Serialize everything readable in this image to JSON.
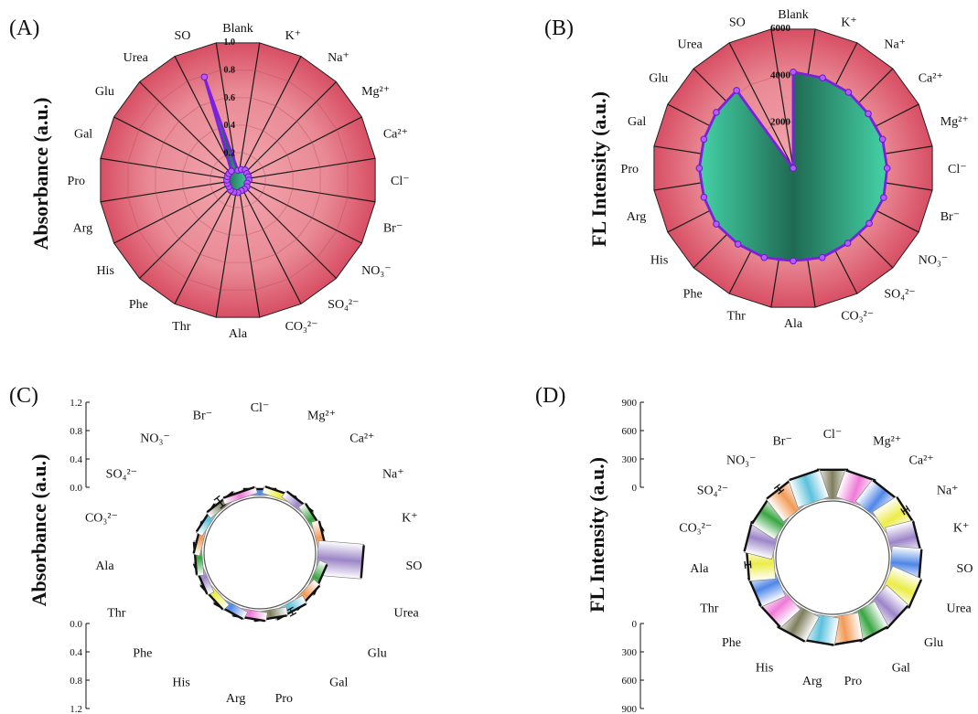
{
  "panels": [
    {
      "id": "A",
      "tag": "(A)",
      "type": "radar",
      "ylabel": "Absorbance (a.u.)",
      "rmax": 1.0,
      "ticks": [
        "0.2",
        "0.4",
        "0.6",
        "0.8",
        "1.0"
      ],
      "categories": [
        "Blank",
        "K⁺",
        "Na⁺",
        "Mg²⁺",
        "Ca²⁺",
        "Cl⁻",
        "Br⁻",
        "NO₃⁻",
        "SO₄²⁻",
        "CO₃²⁻",
        "Ala",
        "Thr",
        "Phe",
        "His",
        "Arg",
        "Pro",
        "Gal",
        "Glu",
        "Urea",
        "SO"
      ],
      "values": [
        0.07,
        0.08,
        0.09,
        0.08,
        0.08,
        0.08,
        0.07,
        0.08,
        0.08,
        0.08,
        0.09,
        0.09,
        0.09,
        0.08,
        0.08,
        0.08,
        0.08,
        0.08,
        0.08,
        0.78
      ]
    },
    {
      "id": "B",
      "tag": "(B)",
      "type": "radar",
      "ylabel": "FL Intensity (a.u.)",
      "rmax": 6000,
      "ticks": [
        "2000",
        "4000",
        "6000"
      ],
      "categories": [
        "Blank",
        "K⁺",
        "Na⁺",
        "Ca²⁺",
        "Mg²⁺",
        "Cl⁻",
        "Br⁻",
        "NO₃⁻",
        "SO₄²⁻",
        "CO₃²⁻",
        "Ala",
        "Thr",
        "Phe",
        "His",
        "Arg",
        "Pro",
        "Gal",
        "Glu",
        "Urea",
        "SO"
      ],
      "values": [
        4100,
        4050,
        4000,
        3950,
        4000,
        4000,
        4050,
        4000,
        3950,
        4000,
        3950,
        4000,
        4000,
        4050,
        4000,
        4000,
        4000,
        4050,
        4100,
        0
      ]
    },
    {
      "id": "C",
      "tag": "(C)",
      "type": "circular-bar",
      "ylabel": "Absorbance (a.u.)",
      "scale_top": [
        "1.2",
        "0.8",
        "0.4",
        "0.0"
      ],
      "scale_bottom": [
        "0.0",
        "0.4",
        "0.8",
        "1.2"
      ],
      "categories": [
        "Cl⁻",
        "Mg²⁺",
        "Ca²⁺",
        "Na⁺",
        "K⁺",
        "SO",
        "Urea",
        "Glu",
        "Gal",
        "Pro",
        "Arg",
        "His",
        "Phe",
        "Thr",
        "Ala",
        "CO₃²⁻",
        "SO₄²⁻",
        "NO₃⁻",
        "Br⁻"
      ],
      "values": [
        0.1,
        0.11,
        0.12,
        0.12,
        0.12,
        0.7,
        0.13,
        0.13,
        0.14,
        0.13,
        0.13,
        0.13,
        0.12,
        0.11,
        0.11,
        0.1,
        0.11,
        0.11,
        0.1
      ],
      "errors": [
        0.008,
        0.006,
        0.006,
        0.03,
        0.025,
        0.006,
        0.006,
        0.006,
        0.05,
        0.006,
        0.02,
        0.025,
        0.006,
        0.006,
        0.006,
        0.006,
        0.02,
        0.08,
        0.02
      ],
      "colors": [
        "#4f86e6",
        "#ecec48",
        "#9c85c8",
        "#39a642",
        "#f29a56",
        "#9c85c8",
        "#39a642",
        "#f29a56",
        "#5cc1dc",
        "#7e7e5e",
        "#ef7ad8",
        "#4f86e6",
        "#ecec48",
        "#9c85c8",
        "#39a642",
        "#f29a56",
        "#5cc1dc",
        "#7e7e5e",
        "#ef7ad8"
      ]
    },
    {
      "id": "D",
      "tag": "(D)",
      "type": "circular-bar",
      "ylabel": "FL Intensity (a.u.)",
      "scale_top": [
        "900",
        "600",
        "300",
        "0"
      ],
      "scale_bottom": [
        "0",
        "300",
        "600",
        "900"
      ],
      "categories": [
        "Cl⁻",
        "Mg²⁺",
        "Ca²⁺",
        "Na⁺",
        "K⁺",
        "SO",
        "Urea",
        "Glu",
        "Gal",
        "Pro",
        "Arg",
        "His",
        "Phe",
        "Thr",
        "Ala",
        "CO₃²⁻",
        "SO₄²⁻",
        "NO₃⁻",
        "Br⁻"
      ],
      "values": [
        580,
        560,
        540,
        560,
        560,
        580,
        620,
        580,
        560,
        540,
        540,
        560,
        530,
        520,
        520,
        560,
        540,
        560,
        570
      ],
      "errors": [
        8,
        8,
        8,
        60,
        20,
        8,
        15,
        8,
        8,
        8,
        8,
        8,
        20,
        8,
        55,
        8,
        10,
        65,
        12
      ],
      "colors": [
        "#7e7e5e",
        "#ef7ad8",
        "#4f86e6",
        "#ecec48",
        "#9c85c8",
        "#4f86e6",
        "#ecec48",
        "#9c85c8",
        "#39a642",
        "#f29a56",
        "#5cc1dc",
        "#7e7e5e",
        "#ef7ad8",
        "#4f86e6",
        "#ecec48",
        "#9c85c8",
        "#39a642",
        "#f29a56",
        "#5cc1dc"
      ]
    }
  ],
  "chart_data": [
    {
      "type": "radar",
      "panel": "(A)",
      "ylabel": "Absorbance (a.u.)",
      "rlim": [
        0,
        1.0
      ],
      "categories": [
        "Blank",
        "K⁺",
        "Na⁺",
        "Mg²⁺",
        "Ca²⁺",
        "Cl⁻",
        "Br⁻",
        "NO₃⁻",
        "SO₄²⁻",
        "CO₃²⁻",
        "Ala",
        "Thr",
        "Phe",
        "His",
        "Arg",
        "Pro",
        "Gal",
        "Glu",
        "Urea",
        "SO"
      ],
      "values": [
        0.07,
        0.08,
        0.09,
        0.08,
        0.08,
        0.08,
        0.07,
        0.08,
        0.08,
        0.08,
        0.09,
        0.09,
        0.09,
        0.08,
        0.08,
        0.08,
        0.08,
        0.08,
        0.08,
        0.78
      ]
    },
    {
      "type": "radar",
      "panel": "(B)",
      "ylabel": "FL Intensity (a.u.)",
      "rlim": [
        0,
        6000
      ],
      "categories": [
        "Blank",
        "K⁺",
        "Na⁺",
        "Ca²⁺",
        "Mg²⁺",
        "Cl⁻",
        "Br⁻",
        "NO₃⁻",
        "SO₄²⁻",
        "CO₃²⁻",
        "Ala",
        "Thr",
        "Phe",
        "His",
        "Arg",
        "Pro",
        "Gal",
        "Glu",
        "Urea",
        "SO"
      ],
      "values": [
        4100,
        4050,
        4000,
        3950,
        4000,
        4000,
        4050,
        4000,
        3950,
        4000,
        3950,
        4000,
        4000,
        4050,
        4000,
        4000,
        4000,
        4050,
        4100,
        0
      ]
    },
    {
      "type": "bar",
      "panel": "(C)",
      "ylabel": "Absorbance (a.u.)",
      "ylim": [
        0,
        1.2
      ],
      "categories": [
        "Cl⁻",
        "Mg²⁺",
        "Ca²⁺",
        "Na⁺",
        "K⁺",
        "SO",
        "Urea",
        "Glu",
        "Gal",
        "Pro",
        "Arg",
        "His",
        "Phe",
        "Thr",
        "Ala",
        "CO₃²⁻",
        "SO₄²⁻",
        "NO₃⁻",
        "Br⁻"
      ],
      "values": [
        0.1,
        0.11,
        0.12,
        0.12,
        0.12,
        0.7,
        0.13,
        0.13,
        0.14,
        0.13,
        0.13,
        0.13,
        0.12,
        0.11,
        0.11,
        0.1,
        0.11,
        0.11,
        0.1
      ]
    },
    {
      "type": "bar",
      "panel": "(D)",
      "ylabel": "FL Intensity (a.u.)",
      "ylim": [
        0,
        900
      ],
      "categories": [
        "Cl⁻",
        "Mg²⁺",
        "Ca²⁺",
        "Na⁺",
        "K⁺",
        "SO",
        "Urea",
        "Glu",
        "Gal",
        "Pro",
        "Arg",
        "His",
        "Phe",
        "Thr",
        "Ala",
        "CO₃²⁻",
        "SO₄²⁻",
        "NO₃⁻",
        "Br⁻"
      ],
      "values": [
        580,
        560,
        540,
        560,
        560,
        580,
        620,
        580,
        560,
        540,
        540,
        560,
        530,
        520,
        520,
        560,
        540,
        560,
        570
      ]
    }
  ]
}
